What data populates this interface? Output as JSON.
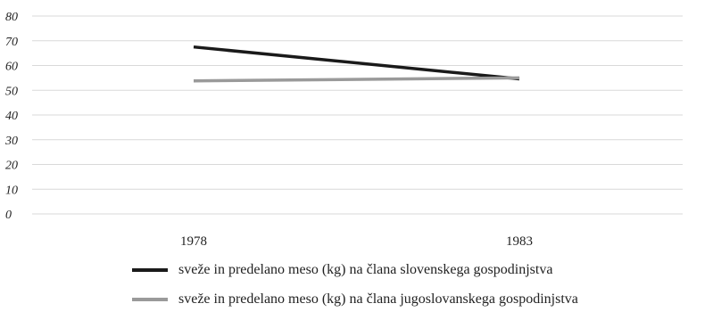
{
  "chart_data": {
    "type": "line",
    "title": "",
    "xlabel": "",
    "ylabel": "",
    "categories": [
      "1978",
      "1983"
    ],
    "ylim": [
      0,
      80
    ],
    "yticks": [
      "80",
      "70",
      "60",
      "50",
      "40",
      "30",
      "20",
      "10",
      "0"
    ],
    "grid": true,
    "legend_position": "bottom",
    "series": [
      {
        "name": "sveže in predelano meso (kg) na člana slovenskega gospodinjstva",
        "values": [
          67.5,
          54.6
        ],
        "color": "#1a1a1a"
      },
      {
        "name": "sveže in predelano meso (kg) na člana jugoslovanskega gospodinjstva",
        "values": [
          53.8,
          55.0
        ],
        "color": "#9a9a9a"
      }
    ]
  }
}
